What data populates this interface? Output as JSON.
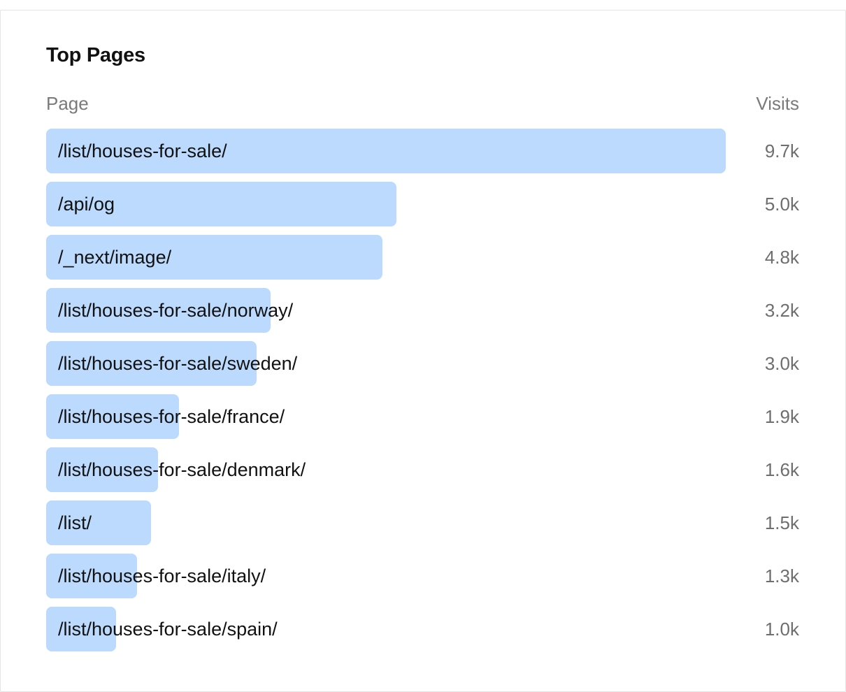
{
  "card": {
    "title": "Top Pages",
    "header_page": "Page",
    "header_visits": "Visits"
  },
  "colors": {
    "bar": "#bcdafd",
    "label": "#111111",
    "value": "#6e6e6e"
  },
  "chart_data": {
    "type": "bar",
    "orientation": "horizontal",
    "categories": [
      "/list/houses-for-sale/",
      "/api/og",
      "/_next/image/",
      "/list/houses-for-sale/norway/",
      "/list/houses-for-sale/sweden/",
      "/list/houses-for-sale/france/",
      "/list/houses-for-sale/denmark/",
      "/list/",
      "/list/houses-for-sale/italy/",
      "/list/houses-for-sale/spain/"
    ],
    "values": [
      9700,
      5000,
      4800,
      3200,
      3000,
      1900,
      1600,
      1500,
      1300,
      1000
    ],
    "value_labels": [
      "9.7k",
      "5.0k",
      "4.8k",
      "3.2k",
      "3.0k",
      "1.9k",
      "1.6k",
      "1.5k",
      "1.3k",
      "1.0k"
    ]
  }
}
